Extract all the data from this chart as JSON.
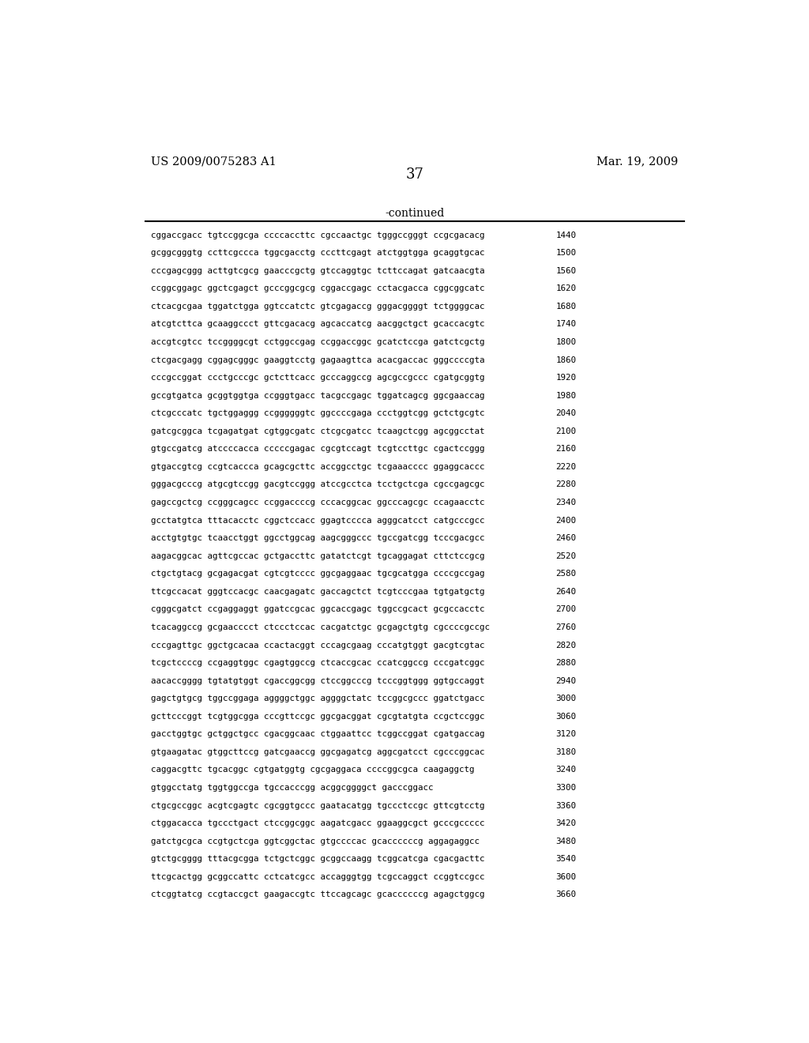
{
  "header_left": "US 2009/0075283 A1",
  "header_right": "Mar. 19, 2009",
  "page_number": "37",
  "continued_label": "-continued",
  "background_color": "#ffffff",
  "text_color": "#000000",
  "sequence_lines": [
    [
      "cggaccgacc tgtccggcga ccccaccttc cgccaactgc tgggccgggt ccgcgacacg",
      "1440"
    ],
    [
      "gcggcgggtg ccttcgccca tggcgacctg cccttcgagt atctggtgga gcaggtgcac",
      "1500"
    ],
    [
      "cccgagcggg acttgtcgcg gaacccgctg gtccaggtgc tcttccagat gatcaacgta",
      "1560"
    ],
    [
      "ccggcggagc ggctcgagct gcccggcgcg cggaccgagc cctacgacca cggcggcatc",
      "1620"
    ],
    [
      "ctcacgcgaa tggatctgga ggtccatctc gtcgagaccg gggacggggt tctggggcac",
      "1680"
    ],
    [
      "atcgtcttca gcaaggccct gttcgacacg agcaccatcg aacggctgct gcaccacgtc",
      "1740"
    ],
    [
      "accgtcgtcc tccggggcgt cctggccgag ccggaccggc gcatctccga gatctcgctg",
      "1800"
    ],
    [
      "ctcgacgagg cggagcgggc gaaggtcctg gagaagttca acacgaccac gggccccgta",
      "1860"
    ],
    [
      "cccgccggat ccctgcccgc gctcttcacc gcccaggccg agcgccgccc cgatgcggtg",
      "1920"
    ],
    [
      "gccgtgatca gcggtggtga ccgggtgacc tacgccgagc tggatcagcg ggcgaaccag",
      "1980"
    ],
    [
      "ctcgcccatc tgctggaggg ccggggggtc ggccccgaga ccctggtcgg gctctgcgtc",
      "2040"
    ],
    [
      "gatcgcggca tcgagatgat cgtggcgatc ctcgcgatcc tcaagctcgg agcggcctat",
      "2100"
    ],
    [
      "gtgccgatcg atccccacca cccccgagac cgcgtccagt tcgtccttgc cgactccggg",
      "2160"
    ],
    [
      "gtgaccgtcg ccgtcaccca gcagcgcttc accggcctgc tcgaaacccc ggaggcaccc",
      "2220"
    ],
    [
      "gggacgcccg atgcgtccgg gacgtccggg atccgcctca tcctgctcga cgccgagcgc",
      "2280"
    ],
    [
      "gagccgctcg ccgggcagcc ccggaccccg cccacggcac ggcccagcgc ccagaacctc",
      "2340"
    ],
    [
      "gcctatgtca tttacacctc cggctccacc ggagtcccca agggcatcct catgcccgcc",
      "2400"
    ],
    [
      "acctgtgtgc tcaacctggt ggcctggcag aagcgggccc tgccgatcgg tcccgacgcc",
      "2460"
    ],
    [
      "aagacggcac agttcgccac gctgaccttc gatatctcgt tgcaggagat cttctccgcg",
      "2520"
    ],
    [
      "ctgctgtacg gcgagacgat cgtcgtcccc ggcgaggaac tgcgcatgga ccccgccgag",
      "2580"
    ],
    [
      "ttcgccacat gggtccacgc caacgagatc gaccagctct tcgtcccgaa tgtgatgctg",
      "2640"
    ],
    [
      "cgggcgatct ccgaggaggt ggatccgcac ggcaccgagc tggccgcact gcgccacctc",
      "2700"
    ],
    [
      "tcacaggccg gcgaacccct ctccctccac cacgatctgc gcgagctgtg cgccccgccgc",
      "2760"
    ],
    [
      "cccgagttgc ggctgcacaa ccactacggt cccagcgaag cccatgtggt gacgtcgtac",
      "2820"
    ],
    [
      "tcgctccccg ccgaggtggc cgagtggccg ctcaccgcac ccatcggccg cccgatcggc",
      "2880"
    ],
    [
      "aacaccgggg tgtatgtggt cgaccggcgg ctccggcccg tcccggtggg ggtgccaggt",
      "2940"
    ],
    [
      "gagctgtgcg tggccggaga aggggctggc aggggctatc tccggcgccc ggatctgacc",
      "3000"
    ],
    [
      "gcttcccggt tcgtggcgga cccgttccgc ggcgacggat cgcgtatgta ccgctccggc",
      "3060"
    ],
    [
      "gacctggtgc gctggctgcc cgacggcaac ctggaattcc tcggccggat cgatgaccag",
      "3120"
    ],
    [
      "gtgaagatac gtggcttccg gatcgaaccg ggcgagatcg aggcgatcct cgcccggcac",
      "3180"
    ],
    [
      "caggacgttc tgcacggc cgtgatggtg cgcgaggaca ccccggcgca caagaggctg",
      "3240"
    ],
    [
      "gtggcctatg tggtggccga tgccacccgg acggcggggct gacccggacc",
      "3300"
    ],
    [
      "ctgcgccggc acgtcgagtc cgcggtgccc gaatacatgg tgccctccgc gttcgtcctg",
      "3360"
    ],
    [
      "ctggacacca tgccctgact ctccggcggc aagatcgacc ggaaggcgct gcccgccccc",
      "3420"
    ],
    [
      "gatctgcgca ccgtgctcga ggtcggctac gtgccccac gcaccccccg aggagaggcc",
      "3480"
    ],
    [
      "gtctgcgggg tttacgcgga tctgctcggc gcggccaagg tcggcatcga cgacgacttc",
      "3540"
    ],
    [
      "ttcgcactgg gcggccattc cctcatcgcc accagggtgg tcgccaggct ccggtccgcc",
      "3600"
    ],
    [
      "ctcggtatcg ccgtaccgct gaagaccgtc ttccagcagc gcaccccccg agagctggcg",
      "3660"
    ]
  ]
}
